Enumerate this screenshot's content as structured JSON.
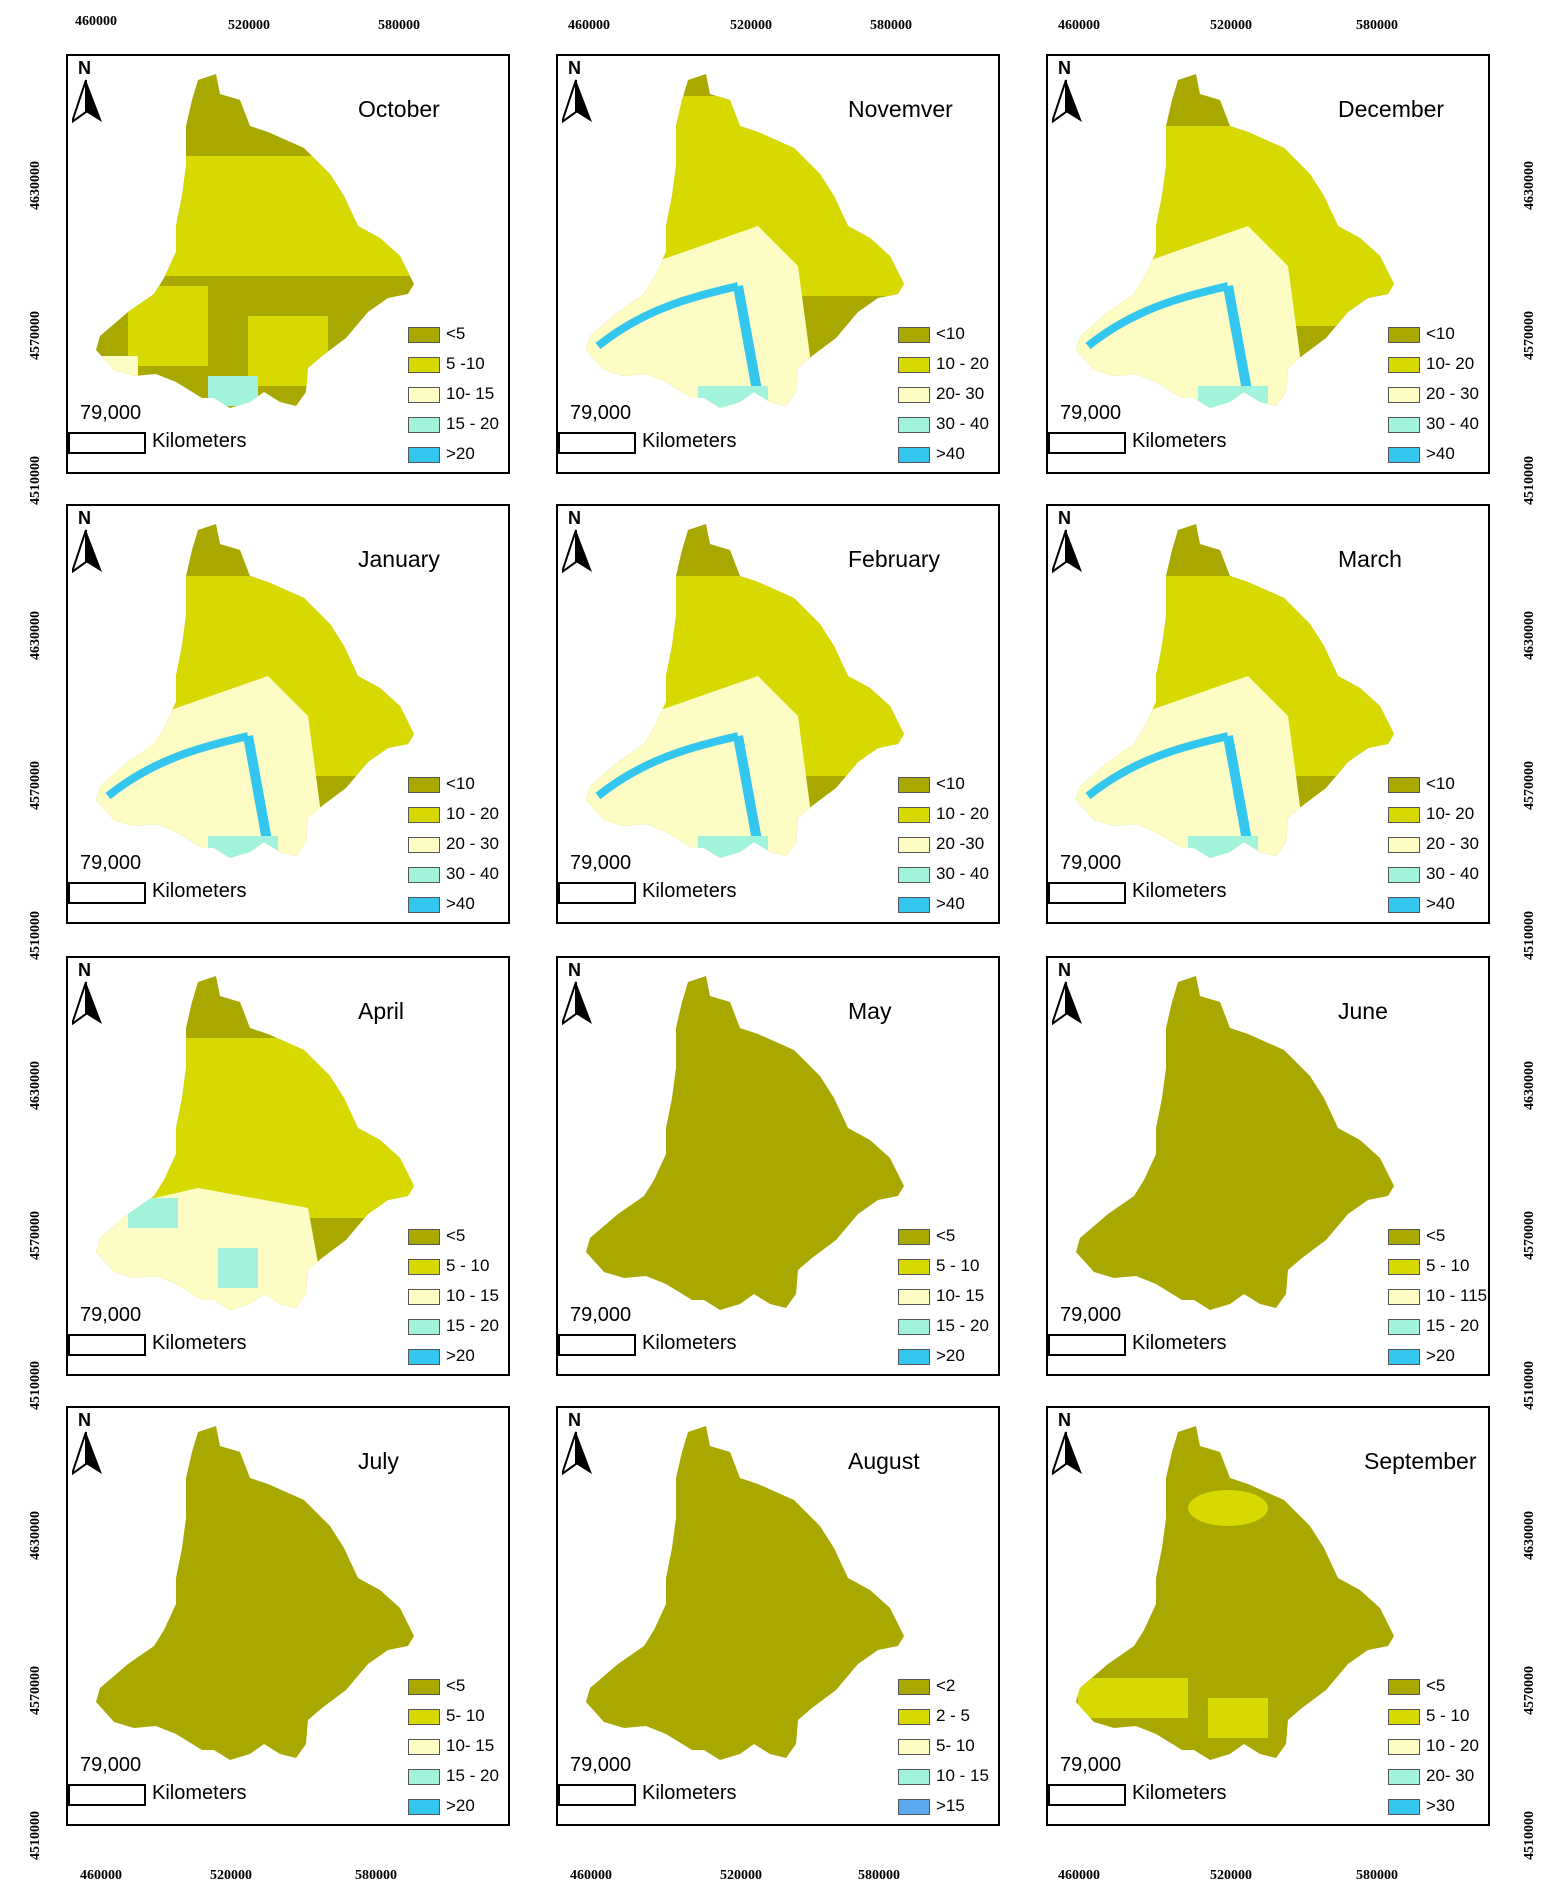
{
  "colors": {
    "c1": "#a9a800",
    "c2": "#d7d900",
    "c3": "#fdfcc4",
    "c4": "#a2f3dc",
    "c5": "#33c7ef",
    "c5_alt": "#5aa9f0"
  },
  "axes": {
    "x_ticks": [
      "460000",
      "520000",
      "580000"
    ],
    "y_ticks": [
      "4630000",
      "4570000",
      "4510000"
    ]
  },
  "scale": {
    "value": "79,000",
    "unit": "Kilometers"
  },
  "north_label": "N",
  "panels": [
    {
      "month": "October",
      "legend": [
        "<5",
        "5 -10",
        "10- 15",
        "15 - 20",
        ">20"
      ]
    },
    {
      "month": "Novemver",
      "legend": [
        "<10",
        "10 - 20",
        "20- 30",
        "30 - 40",
        ">40"
      ]
    },
    {
      "month": "December",
      "legend": [
        "<10",
        "10- 20",
        "20 - 30",
        "30 - 40",
        ">40"
      ]
    },
    {
      "month": "January",
      "legend": [
        "<10",
        "10 - 20",
        "20 - 30",
        "30 - 40",
        ">40"
      ]
    },
    {
      "month": "February",
      "legend": [
        "<10",
        "10 - 20",
        "20 -30",
        "30 - 40",
        ">40"
      ]
    },
    {
      "month": "March",
      "legend": [
        "<10",
        "10- 20",
        "20 - 30",
        "30 - 40",
        ">40"
      ]
    },
    {
      "month": "April",
      "legend": [
        "<5",
        "5 - 10",
        "10 - 15",
        "15 - 20",
        ">20"
      ]
    },
    {
      "month": "May",
      "legend": [
        "<5",
        "5 - 10",
        "10- 15",
        "15 - 20",
        ">20"
      ]
    },
    {
      "month": "June",
      "legend": [
        "<5",
        "5 - 10",
        "10 - 115",
        "15 - 20",
        ">20"
      ]
    },
    {
      "month": "July",
      "legend": [
        "<5",
        "5- 10",
        "10- 15",
        "15 - 20",
        ">20"
      ]
    },
    {
      "month": "August",
      "legend": [
        "<2",
        "2 - 5",
        "5- 10",
        "10 - 15",
        ">15"
      ]
    },
    {
      "month": "September",
      "legend": [
        "<5",
        "5 - 10",
        "10 - 20",
        "20- 30",
        ">30"
      ]
    }
  ]
}
